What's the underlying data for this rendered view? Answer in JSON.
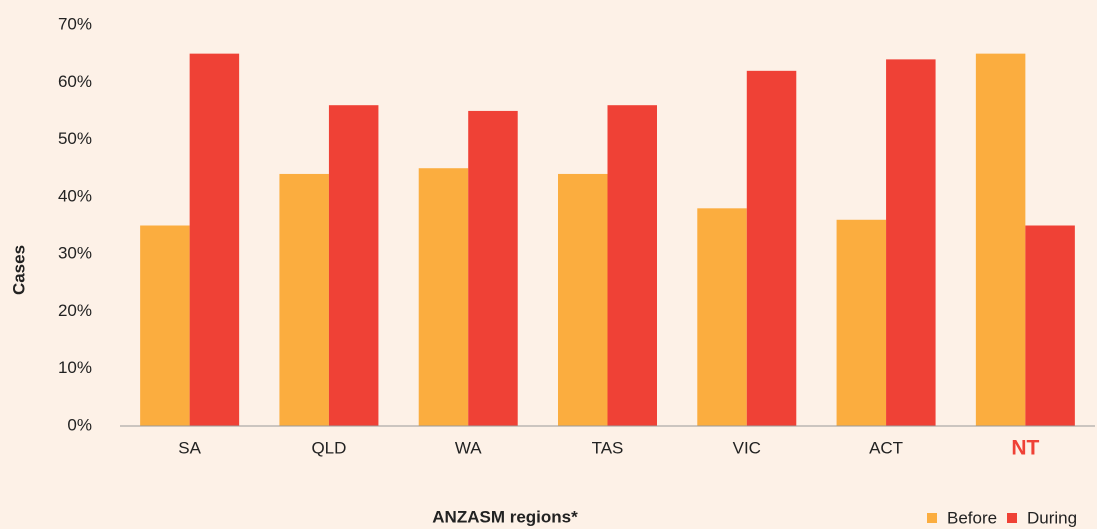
{
  "chart_data": {
    "type": "bar",
    "x_label": "ANZASM regions*",
    "y_label": "Cases",
    "categories": [
      "SA",
      "QLD",
      "WA",
      "TAS",
      "VIC",
      "ACT",
      "NT"
    ],
    "series": [
      {
        "name": "Before",
        "color": "#fbad3f",
        "values": [
          35,
          44,
          45,
          44,
          38,
          36,
          65
        ]
      },
      {
        "name": "During",
        "color": "#ef4136",
        "values": [
          65,
          56,
          55,
          56,
          62,
          64,
          35
        ]
      }
    ],
    "ylim": [
      0,
      70
    ],
    "yticks": [
      {
        "value": 0,
        "label": "0%"
      },
      {
        "value": 10,
        "label": "10%"
      },
      {
        "value": 20,
        "label": "20%"
      },
      {
        "value": 30,
        "label": "30%"
      },
      {
        "value": 40,
        "label": "40%"
      },
      {
        "value": 50,
        "label": "50%"
      },
      {
        "value": 60,
        "label": "60%"
      },
      {
        "value": 70,
        "label": "70%"
      }
    ],
    "grid": false,
    "legend": "bottom-right",
    "highlight": {
      "category": 6,
      "color": "#ef4136"
    }
  }
}
